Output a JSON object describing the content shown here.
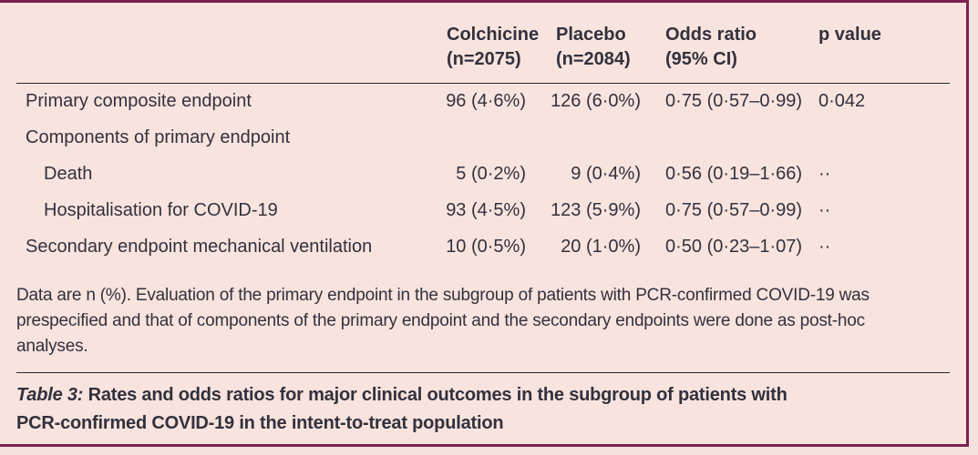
{
  "colors": {
    "background": "#f8e3de",
    "frame_border": "#7b2150",
    "text": "#32313d",
    "rule": "#28262f"
  },
  "table": {
    "header": {
      "colchicine": {
        "line1": "Colchicine",
        "line2": "(n=2075)"
      },
      "placebo": {
        "line1": "Placebo",
        "line2": "(n=2084)"
      },
      "odds_ratio": {
        "line1": "Odds ratio",
        "line2": "(95% CI)"
      },
      "p_value": {
        "line1": "p value"
      }
    },
    "rows": [
      {
        "label": "Primary composite endpoint",
        "colchicine": "96 (4·6%)",
        "placebo": "126 (6·0%)",
        "odds_ratio": "0·75 (0·57–0·99)",
        "p_value": "0·042"
      },
      {
        "label": "Components of primary endpoint",
        "colchicine": "",
        "placebo": "",
        "odds_ratio": "",
        "p_value": ""
      },
      {
        "label": "Death",
        "colchicine": "5 (0·2%)",
        "placebo": "9 (0·4%)",
        "odds_ratio": "0·56 (0·19–1·66)",
        "p_value": "··"
      },
      {
        "label": "Hospitalisation for COVID-19",
        "colchicine": "93 (4·5%)",
        "placebo": "123 (5·9%)",
        "odds_ratio": "0·75 (0·57–0·99)",
        "p_value": "··"
      },
      {
        "label": "Secondary endpoint mechanical ventilation",
        "colchicine": "10 (0·5%)",
        "placebo": "20 (1·0%)",
        "odds_ratio": "0·50 (0·23–1·07)",
        "p_value": "··"
      }
    ],
    "footnote": {
      "lines": [
        "Data are n (%). Evaluation of the primary endpoint in the subgroup of patients with PCR-confirmed COVID-19 was",
        "prespecified and that of components of the primary endpoint and the secondary endpoints were done as post-hoc",
        "analyses."
      ]
    },
    "caption": {
      "prefix": "Table 3:",
      "line1_rest": " Rates and odds ratios for major clinical outcomes in the subgroup of patients with",
      "line2": "PCR-confirmed COVID-19 in the intent-to-treat population"
    }
  }
}
